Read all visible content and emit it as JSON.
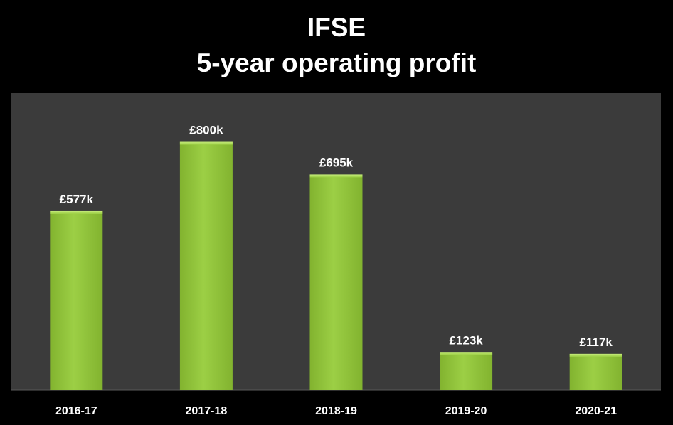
{
  "chart_data": {
    "type": "bar",
    "title": "IFSE",
    "subtitle": "5-year operating profit",
    "xlabel": "",
    "ylabel": "",
    "categories": [
      "2016-17",
      "2017-18",
      "2018-19",
      "2019-20",
      "2020-21"
    ],
    "values": [
      577,
      800,
      695,
      123,
      117
    ],
    "unit": "£ thousands",
    "data_labels": [
      "£577k",
      "£800k",
      "£695k",
      "£123k",
      "£117k"
    ],
    "ylim": [
      0,
      957
    ],
    "grid": false,
    "legend": "none",
    "colors": {
      "background": "#000000",
      "plot_area": "#3b3b3b",
      "bar": "#9ccf45",
      "bar_light": "#c4ea7a",
      "bar_dark": "#82b32f",
      "text": "#ffffff"
    }
  }
}
